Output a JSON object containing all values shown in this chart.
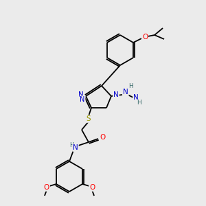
{
  "bg_color": "#ebebeb",
  "bond_color": "#000000",
  "atom_colors": {
    "N": "#0000cc",
    "O": "#ff0000",
    "S": "#999900",
    "H": "#336666",
    "C": "#000000"
  },
  "figsize": [
    3.0,
    3.0
  ],
  "dpi": 100
}
